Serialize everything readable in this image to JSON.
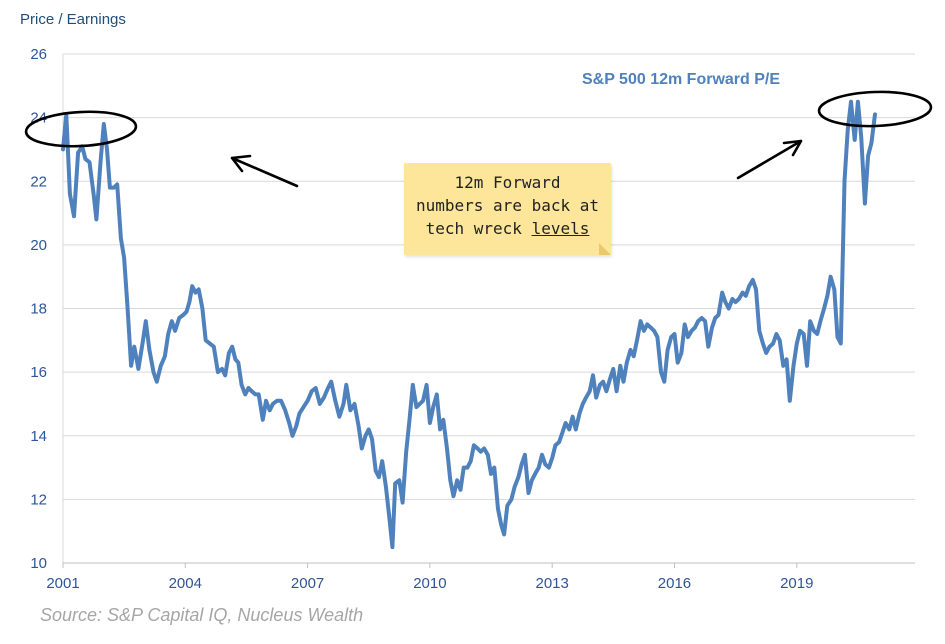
{
  "y_title": "Price / Earnings",
  "series_title": "S&P 500 12m Forward P/E",
  "source": "Source: S&P Capital IQ, Nucleus Wealth",
  "note": {
    "line1": "12m Forward",
    "line2": "numbers are back at",
    "line3_prefix": "tech wreck ",
    "line3_underlined": "levels"
  },
  "colors": {
    "line": "#4f81bd",
    "axis_text": "#2e5597",
    "grid": "#d9d9d9",
    "note": "#fde69a",
    "source": "#a6a6a6"
  },
  "chart_data": {
    "type": "line",
    "title": "S&P 500 12m Forward P/E",
    "ylabel": "Price / Earnings",
    "xlabel": "",
    "ylim": [
      10,
      26
    ],
    "xlim": [
      2001.0,
      2021.9
    ],
    "y_ticks": [
      10,
      12,
      14,
      16,
      18,
      20,
      22,
      24,
      26
    ],
    "x_ticks": [
      2001,
      2004,
      2007,
      2010,
      2013,
      2016,
      2019
    ],
    "grid": "horizontal",
    "legend": "none",
    "series": [
      {
        "name": "S&P 500 12m Forward P/E",
        "points": [
          [
            2001.0,
            23.0
          ],
          [
            2001.08,
            24.1
          ],
          [
            2001.17,
            21.6
          ],
          [
            2001.27,
            20.9
          ],
          [
            2001.37,
            22.9
          ],
          [
            2001.47,
            23.1
          ],
          [
            2001.55,
            22.7
          ],
          [
            2001.65,
            22.6
          ],
          [
            2001.75,
            21.6
          ],
          [
            2001.82,
            20.8
          ],
          [
            2001.92,
            22.6
          ],
          [
            2002.0,
            23.8
          ],
          [
            2002.08,
            23.0
          ],
          [
            2002.15,
            21.8
          ],
          [
            2002.25,
            21.8
          ],
          [
            2002.33,
            21.9
          ],
          [
            2002.42,
            20.2
          ],
          [
            2002.5,
            19.6
          ],
          [
            2002.58,
            18.1
          ],
          [
            2002.67,
            16.2
          ],
          [
            2002.75,
            16.8
          ],
          [
            2002.85,
            16.1
          ],
          [
            2002.95,
            16.9
          ],
          [
            2003.03,
            17.6
          ],
          [
            2003.12,
            16.7
          ],
          [
            2003.22,
            16.0
          ],
          [
            2003.3,
            15.7
          ],
          [
            2003.4,
            16.2
          ],
          [
            2003.5,
            16.5
          ],
          [
            2003.58,
            17.2
          ],
          [
            2003.67,
            17.6
          ],
          [
            2003.75,
            17.3
          ],
          [
            2003.85,
            17.7
          ],
          [
            2003.95,
            17.8
          ],
          [
            2004.03,
            17.9
          ],
          [
            2004.1,
            18.2
          ],
          [
            2004.17,
            18.7
          ],
          [
            2004.25,
            18.5
          ],
          [
            2004.33,
            18.6
          ],
          [
            2004.42,
            18.0
          ],
          [
            2004.5,
            17.0
          ],
          [
            2004.6,
            16.9
          ],
          [
            2004.7,
            16.8
          ],
          [
            2004.8,
            16.0
          ],
          [
            2004.9,
            16.1
          ],
          [
            2004.98,
            15.9
          ],
          [
            2005.07,
            16.6
          ],
          [
            2005.15,
            16.8
          ],
          [
            2005.23,
            16.4
          ],
          [
            2005.3,
            16.3
          ],
          [
            2005.38,
            15.6
          ],
          [
            2005.47,
            15.3
          ],
          [
            2005.55,
            15.5
          ],
          [
            2005.63,
            15.4
          ],
          [
            2005.72,
            15.3
          ],
          [
            2005.8,
            15.3
          ],
          [
            2005.9,
            14.5
          ],
          [
            2005.98,
            15.1
          ],
          [
            2006.07,
            14.8
          ],
          [
            2006.15,
            15.0
          ],
          [
            2006.25,
            15.1
          ],
          [
            2006.35,
            15.1
          ],
          [
            2006.45,
            14.8
          ],
          [
            2006.55,
            14.4
          ],
          [
            2006.63,
            14.0
          ],
          [
            2006.72,
            14.3
          ],
          [
            2006.8,
            14.7
          ],
          [
            2006.9,
            14.9
          ],
          [
            2007.0,
            15.1
          ],
          [
            2007.1,
            15.4
          ],
          [
            2007.2,
            15.5
          ],
          [
            2007.3,
            15.0
          ],
          [
            2007.4,
            15.2
          ],
          [
            2007.5,
            15.5
          ],
          [
            2007.58,
            15.7
          ],
          [
            2007.68,
            15.1
          ],
          [
            2007.78,
            14.6
          ],
          [
            2007.88,
            15.0
          ],
          [
            2007.95,
            15.6
          ],
          [
            2008.05,
            14.8
          ],
          [
            2008.15,
            15.0
          ],
          [
            2008.25,
            14.3
          ],
          [
            2008.33,
            13.6
          ],
          [
            2008.42,
            14.0
          ],
          [
            2008.5,
            14.2
          ],
          [
            2008.58,
            13.9
          ],
          [
            2008.67,
            12.9
          ],
          [
            2008.75,
            12.7
          ],
          [
            2008.83,
            13.2
          ],
          [
            2008.92,
            12.4
          ],
          [
            2009.0,
            11.5
          ],
          [
            2009.08,
            10.5
          ],
          [
            2009.15,
            12.5
          ],
          [
            2009.25,
            12.6
          ],
          [
            2009.33,
            11.9
          ],
          [
            2009.42,
            13.5
          ],
          [
            2009.5,
            14.5
          ],
          [
            2009.58,
            15.6
          ],
          [
            2009.67,
            14.9
          ],
          [
            2009.75,
            15.0
          ],
          [
            2009.83,
            15.1
          ],
          [
            2009.92,
            15.6
          ],
          [
            2010.0,
            14.4
          ],
          [
            2010.08,
            14.9
          ],
          [
            2010.17,
            15.3
          ],
          [
            2010.25,
            14.2
          ],
          [
            2010.33,
            14.5
          ],
          [
            2010.42,
            13.6
          ],
          [
            2010.5,
            12.6
          ],
          [
            2010.58,
            12.1
          ],
          [
            2010.67,
            12.6
          ],
          [
            2010.75,
            12.3
          ],
          [
            2010.83,
            13.0
          ],
          [
            2010.92,
            13.0
          ],
          [
            2011.0,
            13.2
          ],
          [
            2011.08,
            13.7
          ],
          [
            2011.17,
            13.6
          ],
          [
            2011.25,
            13.5
          ],
          [
            2011.33,
            13.6
          ],
          [
            2011.42,
            13.4
          ],
          [
            2011.5,
            12.8
          ],
          [
            2011.58,
            13.0
          ],
          [
            2011.67,
            11.7
          ],
          [
            2011.75,
            11.2
          ],
          [
            2011.82,
            10.9
          ],
          [
            2011.9,
            11.8
          ],
          [
            2012.0,
            12.0
          ],
          [
            2012.08,
            12.4
          ],
          [
            2012.17,
            12.7
          ],
          [
            2012.25,
            13.1
          ],
          [
            2012.33,
            13.4
          ],
          [
            2012.42,
            12.2
          ],
          [
            2012.5,
            12.6
          ],
          [
            2012.58,
            12.8
          ],
          [
            2012.67,
            13.0
          ],
          [
            2012.75,
            13.4
          ],
          [
            2012.83,
            13.1
          ],
          [
            2012.92,
            13.0
          ],
          [
            2013.0,
            13.3
          ],
          [
            2013.08,
            13.7
          ],
          [
            2013.17,
            13.8
          ],
          [
            2013.25,
            14.1
          ],
          [
            2013.33,
            14.4
          ],
          [
            2013.42,
            14.2
          ],
          [
            2013.5,
            14.6
          ],
          [
            2013.58,
            14.2
          ],
          [
            2013.67,
            14.7
          ],
          [
            2013.75,
            15.0
          ],
          [
            2013.83,
            15.2
          ],
          [
            2013.92,
            15.4
          ],
          [
            2014.0,
            15.9
          ],
          [
            2014.08,
            15.2
          ],
          [
            2014.17,
            15.6
          ],
          [
            2014.25,
            15.7
          ],
          [
            2014.33,
            15.4
          ],
          [
            2014.42,
            15.8
          ],
          [
            2014.5,
            16.1
          ],
          [
            2014.58,
            15.4
          ],
          [
            2014.67,
            16.2
          ],
          [
            2014.75,
            15.7
          ],
          [
            2014.83,
            16.3
          ],
          [
            2014.92,
            16.7
          ],
          [
            2015.0,
            16.5
          ],
          [
            2015.08,
            17.0
          ],
          [
            2015.17,
            17.6
          ],
          [
            2015.25,
            17.3
          ],
          [
            2015.33,
            17.5
          ],
          [
            2015.42,
            17.4
          ],
          [
            2015.5,
            17.3
          ],
          [
            2015.58,
            17.1
          ],
          [
            2015.67,
            16.0
          ],
          [
            2015.75,
            15.7
          ],
          [
            2015.83,
            16.7
          ],
          [
            2015.92,
            17.1
          ],
          [
            2016.0,
            17.2
          ],
          [
            2016.08,
            16.3
          ],
          [
            2016.17,
            16.6
          ],
          [
            2016.25,
            17.5
          ],
          [
            2016.33,
            17.1
          ],
          [
            2016.42,
            17.3
          ],
          [
            2016.5,
            17.4
          ],
          [
            2016.58,
            17.6
          ],
          [
            2016.67,
            17.7
          ],
          [
            2016.75,
            17.6
          ],
          [
            2016.83,
            16.8
          ],
          [
            2016.92,
            17.4
          ],
          [
            2017.0,
            17.7
          ],
          [
            2017.08,
            17.8
          ],
          [
            2017.17,
            18.5
          ],
          [
            2017.25,
            18.2
          ],
          [
            2017.33,
            18.0
          ],
          [
            2017.42,
            18.3
          ],
          [
            2017.5,
            18.2
          ],
          [
            2017.58,
            18.3
          ],
          [
            2017.67,
            18.5
          ],
          [
            2017.75,
            18.4
          ],
          [
            2017.83,
            18.7
          ],
          [
            2017.92,
            18.9
          ],
          [
            2018.0,
            18.6
          ],
          [
            2018.08,
            17.3
          ],
          [
            2018.17,
            16.9
          ],
          [
            2018.25,
            16.6
          ],
          [
            2018.33,
            16.8
          ],
          [
            2018.42,
            16.9
          ],
          [
            2018.5,
            17.2
          ],
          [
            2018.58,
            17.0
          ],
          [
            2018.67,
            16.2
          ],
          [
            2018.75,
            16.4
          ],
          [
            2018.83,
            15.1
          ],
          [
            2018.92,
            16.2
          ],
          [
            2019.0,
            16.9
          ],
          [
            2019.08,
            17.3
          ],
          [
            2019.17,
            17.2
          ],
          [
            2019.25,
            16.2
          ],
          [
            2019.33,
            17.6
          ],
          [
            2019.42,
            17.3
          ],
          [
            2019.5,
            17.2
          ],
          [
            2019.58,
            17.6
          ],
          [
            2019.67,
            18.0
          ],
          [
            2019.75,
            18.4
          ],
          [
            2019.83,
            19.0
          ],
          [
            2019.92,
            18.6
          ],
          [
            2020.0,
            17.1
          ],
          [
            2020.08,
            16.9
          ],
          [
            2020.17,
            22.0
          ],
          [
            2020.25,
            23.6
          ],
          [
            2020.33,
            24.5
          ],
          [
            2020.42,
            23.3
          ],
          [
            2020.5,
            24.5
          ],
          [
            2020.58,
            23.4
          ],
          [
            2020.67,
            21.3
          ],
          [
            2020.75,
            22.8
          ],
          [
            2020.83,
            23.2
          ],
          [
            2020.92,
            24.1
          ]
        ]
      }
    ]
  }
}
